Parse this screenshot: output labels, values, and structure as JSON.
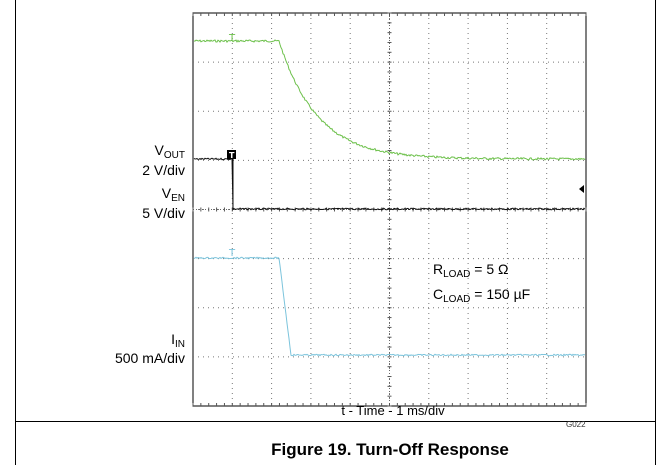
{
  "chart_data": {
    "type": "line",
    "title": "Figure 19. Turn-Off Response",
    "xlabel": "t - Time - 1 ms/div",
    "figure_code": "G022",
    "channels": [
      {
        "name_main": "V",
        "name_sub": "OUT",
        "scale": "2 V/div",
        "color": "#6cc04a"
      },
      {
        "name_main": "V",
        "name_sub": "EN",
        "scale": "5 V/div",
        "color": "#111111"
      },
      {
        "name_main": "I",
        "name_sub": "IN",
        "scale": "500 mA/div",
        "color": "#7cc4dc"
      }
    ],
    "conditions": [
      {
        "main": "R",
        "sub": "LOAD",
        "value": " = 5 Ω"
      },
      {
        "main": "C",
        "sub": "LOAD",
        "value": " = 150 µF"
      }
    ],
    "x_divisions": 10,
    "y_divisions": 8,
    "grid": true
  }
}
